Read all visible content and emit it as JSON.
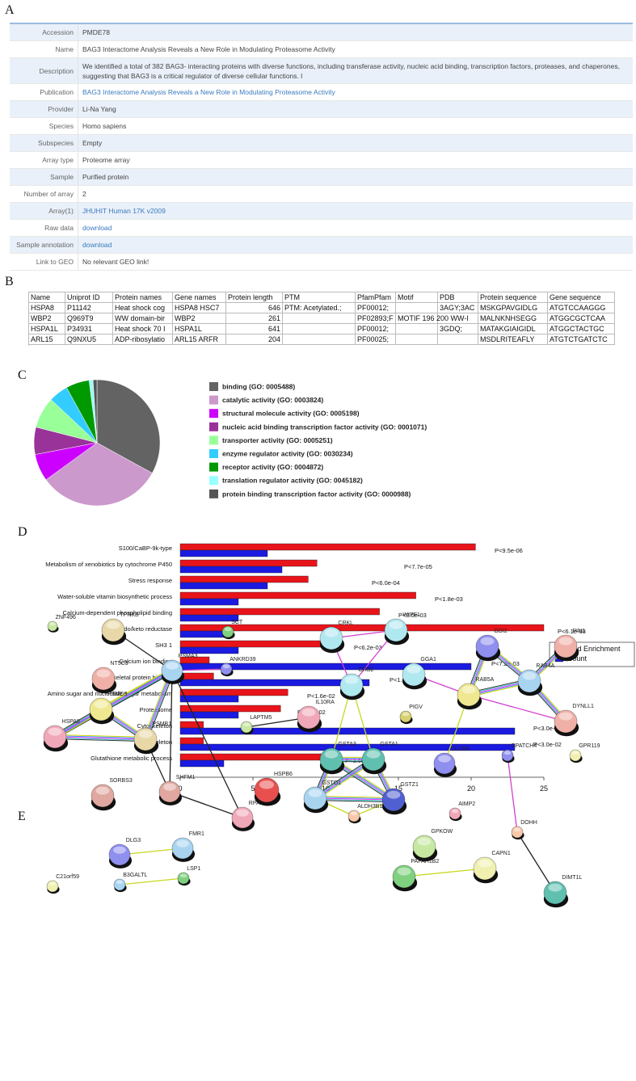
{
  "panels": [
    "A",
    "B",
    "C",
    "D",
    "E"
  ],
  "info_table": {
    "rows": [
      {
        "label": "Accession",
        "value": "PMDE78"
      },
      {
        "label": "Name",
        "value": "BAG3 Interactome Analysis Reveals a New Role in Modulating Proteasome Activity"
      },
      {
        "label": "Description",
        "value": "We identified a total of 382 BAG3- interacting proteins with diverse functions, including transferase activity, nucleic acid binding, transcription factors, proteases, and chaperones, suggesting that BAG3 is a critical regulator of diverse cellular functions. l"
      },
      {
        "label": "Publication",
        "value": "BAG3 Interactome Analysis Reveals a New Role in Modulating Proteasome Activity",
        "link": true
      },
      {
        "label": "Provider",
        "value": "Li-Na Yang"
      },
      {
        "label": "Species",
        "value": "Homo sapiens"
      },
      {
        "label": "Subspecies",
        "value": "Empty"
      },
      {
        "label": "Array type",
        "value": "Proteome array"
      },
      {
        "label": "Sample",
        "value": "Purified protein"
      },
      {
        "label": "Number of array",
        "value": "2"
      },
      {
        "label": "Array(1)",
        "value": "JHUHIT Human 17K v2009",
        "link": true
      },
      {
        "label": "Raw data",
        "value": "download",
        "link": true
      },
      {
        "label": "Sample annotation",
        "value": "download",
        "link": true
      },
      {
        "label": "Link to GEO",
        "value": "No relevant GEO link!"
      }
    ]
  },
  "spreadsheet": {
    "columns": [
      "Name",
      "Uniprot ID",
      "Protein names",
      "Gene names",
      "Protein length",
      "PTM",
      "PfamPfam",
      "Motif",
      "PDB",
      "Protein sequence",
      "Gene sequence"
    ],
    "rows": [
      [
        "HSPA8",
        "P11142",
        "Heat shock cog",
        "HSPA8 HSC7",
        646,
        "PTM: Acetylated.;",
        "PF00012;",
        null,
        "3AGY;3AC",
        "MSKGPAVGIDLG",
        "ATGTCCAAGGG"
      ],
      [
        "WBP2",
        "Q969T9",
        "WW domain-bir",
        "WBP2",
        261,
        null,
        "PF02893;F",
        "MOTIF 196 200 WW-I",
        null,
        "MALNKNHSEGG",
        "ATGGCGCTCAA"
      ],
      [
        "HSPA1L",
        "P34931",
        "Heat shock 70 I",
        "HSPA1L",
        641,
        null,
        "PF00012;",
        null,
        "3GDQ;",
        "MATAKGIAIGIDL",
        "ATGGCTACTGC"
      ],
      [
        "ARL15",
        "Q9NXU5",
        "ADP-ribosylatio",
        "ARL15 ARFR",
        204,
        null,
        "PF00025;",
        null,
        null,
        "MSDLRITEAFLY",
        "ATGTCTGATCTC"
      ]
    ]
  },
  "chart_data": [
    {
      "type": "pie",
      "categories": [
        "binding (GO: 0005488)",
        "catalytic activity (GO: 0003824)",
        "structural molecule activity (GO: 0005198)",
        "nucleic acid binding transcription factor activity (GO: 0001071)",
        "transporter activity (GO: 0005251)",
        "enzyme regulator activity (GO: 0030234)",
        "receptor activity (GO: 0004872)",
        "translation regulator activity (GO: 0045182)",
        "protein binding transcription factor activity (GO: 0000988)"
      ],
      "values": [
        33,
        32,
        7,
        7,
        8,
        5,
        6,
        1,
        1
      ],
      "colors": [
        "#636363",
        "#cc99cc",
        "#cc00ff",
        "#993399",
        "#99ff99",
        "#33ccff",
        "#009900",
        "#99ffff",
        "#555555"
      ]
    },
    {
      "type": "bar",
      "orientation": "horizontal",
      "categories": [
        "S100/CaBP-9k-type",
        "Metabolism of xenobiotics by cytochrome P450",
        "Stress response",
        "Water-soluble vitamin biosynthetic process",
        "Calcium-dependent phospholipid binding",
        "Aldo/keto reductase",
        "SH3 1",
        "Calcium ion binding",
        "Cytoskeletal protein binding",
        "Amino sugar and nucleotide sugar metabolism",
        "Proteasome",
        "Cytoskeleton",
        "Cytoskeleton",
        "Glutathione metabolic process"
      ],
      "series": [
        {
          "name": "Fold Enrichment",
          "color": "#e8141a",
          "values": [
            20.3,
            9.4,
            8.8,
            16.2,
            13.7,
            25,
            10.7,
            2,
            2.3,
            7.4,
            6.9,
            1.6,
            1.6,
            10
          ]
        },
        {
          "name": "Count",
          "color": "#1a1ae0",
          "values": [
            6,
            7,
            6,
            4,
            4,
            3,
            4,
            20,
            13,
            4,
            4,
            23,
            23,
            3
          ]
        }
      ],
      "annotations": [
        "P<9.5e-06",
        "P<7.7e-05",
        "P<6.0e-04",
        "P<1.8e-03",
        "P<3.0e-03",
        "P<6.1e-03",
        "P<6.2e-03",
        "P<7.2e-03",
        "P<1.1e-02",
        "P<1.6e-02",
        "P<2.0e-02",
        "P<3.0e-02",
        "P<3.0e-02",
        "P<3.6e-02"
      ],
      "xlim": [
        0,
        25
      ],
      "xticks": [
        0,
        5,
        10,
        15,
        20,
        25
      ],
      "legend": "right"
    }
  ],
  "network": {
    "nodes": [
      "ZNF496",
      "TPRKB",
      "SCT",
      "NT5C3",
      "ANKRD39",
      "PSMA3",
      "PSMD9",
      "HSPA8",
      "PSMB1",
      "SHFM1",
      "SORBS3",
      "RPA3",
      "DLG3",
      "FMR1",
      "LSP1",
      "B3GALTL",
      "C21orf59",
      "CRKL",
      "WIPF1",
      "GRB2",
      "GGA1",
      "GDI2",
      "PIN1",
      "RAB4A",
      "RAB5A",
      "IL10RA",
      "LAPTM5",
      "PIGV",
      "DYNLL1",
      "GSTA3",
      "GSTA1",
      "HSPB6",
      "GPATCH4",
      "GPR119",
      "CLCN5",
      "GSTO1",
      "GSTZ1",
      "AIMP2",
      "ALDH3B1",
      "DOHH",
      "GPKOW",
      "CAPN1",
      "PAFAH1B2",
      "DIMT1L"
    ]
  }
}
